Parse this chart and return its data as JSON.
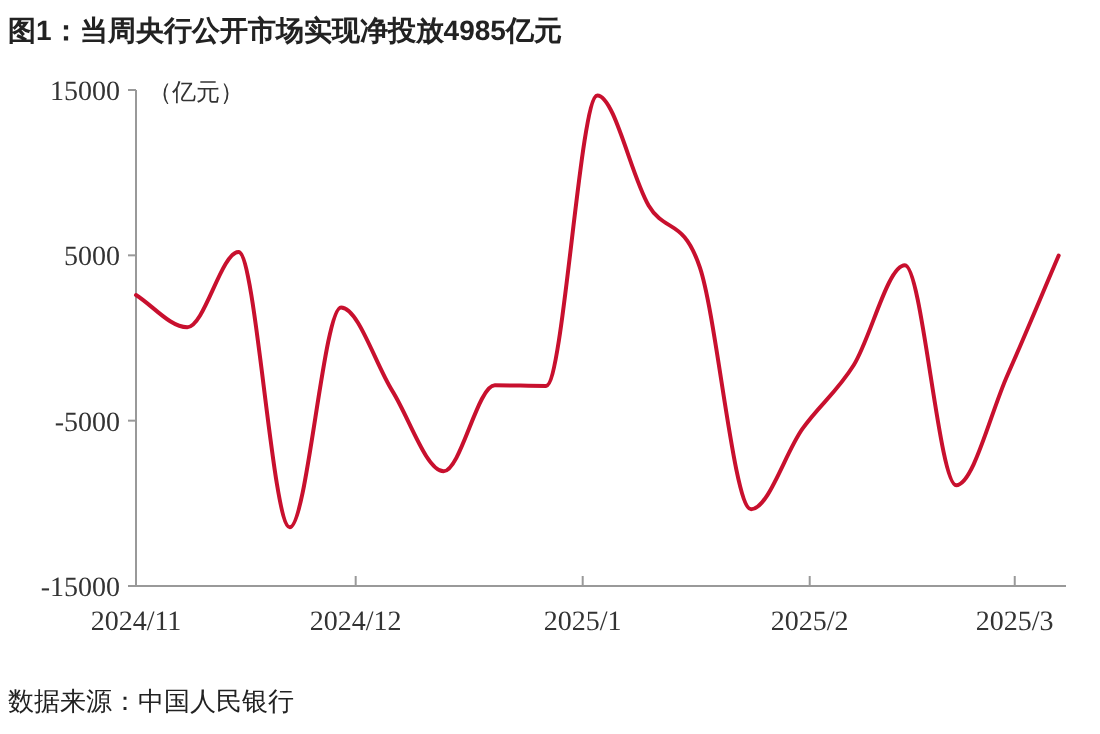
{
  "chart_data": {
    "type": "line",
    "title": "图1：当周央行公开市场实现净投放4985亿元",
    "ylabel": "（亿元）",
    "annotations": [
      "数据来源：中国人民银行"
    ],
    "x": [
      "2024-11-01",
      "2024-11-08",
      "2024-11-15",
      "2024-11-22",
      "2024-11-29",
      "2024-12-06",
      "2024-12-13",
      "2024-12-20",
      "2024-12-27",
      "2025-01-03",
      "2025-01-10",
      "2025-01-17",
      "2025-01-24",
      "2025-01-31",
      "2025-02-07",
      "2025-02-14",
      "2025-02-21",
      "2025-02-28",
      "2025-03-07"
    ],
    "series": [
      {
        "color": "#c8102e",
        "values": [
          2600,
          650,
          5200,
          -11450,
          1850,
          -3200,
          -8060,
          -2860,
          -2900,
          14670,
          8020,
          4270,
          -10360,
          -5500,
          -1650,
          4400,
          -8900,
          -2250,
          4985
        ]
      }
    ],
    "xlim": [
      "2024-11-01",
      "2025-03-08"
    ],
    "ylim": [
      -15000,
      15000
    ],
    "xticks": [
      {
        "value": "2024-11-01",
        "label": "2024/11"
      },
      {
        "value": "2024-12-01",
        "label": "2024/12"
      },
      {
        "value": "2025-01-01",
        "label": "2025/1"
      },
      {
        "value": "2025-02-01",
        "label": "2025/2"
      },
      {
        "value": "2025-03-01",
        "label": "2025/3"
      }
    ],
    "yticks": [
      -15000,
      -5000,
      5000,
      15000
    ]
  }
}
